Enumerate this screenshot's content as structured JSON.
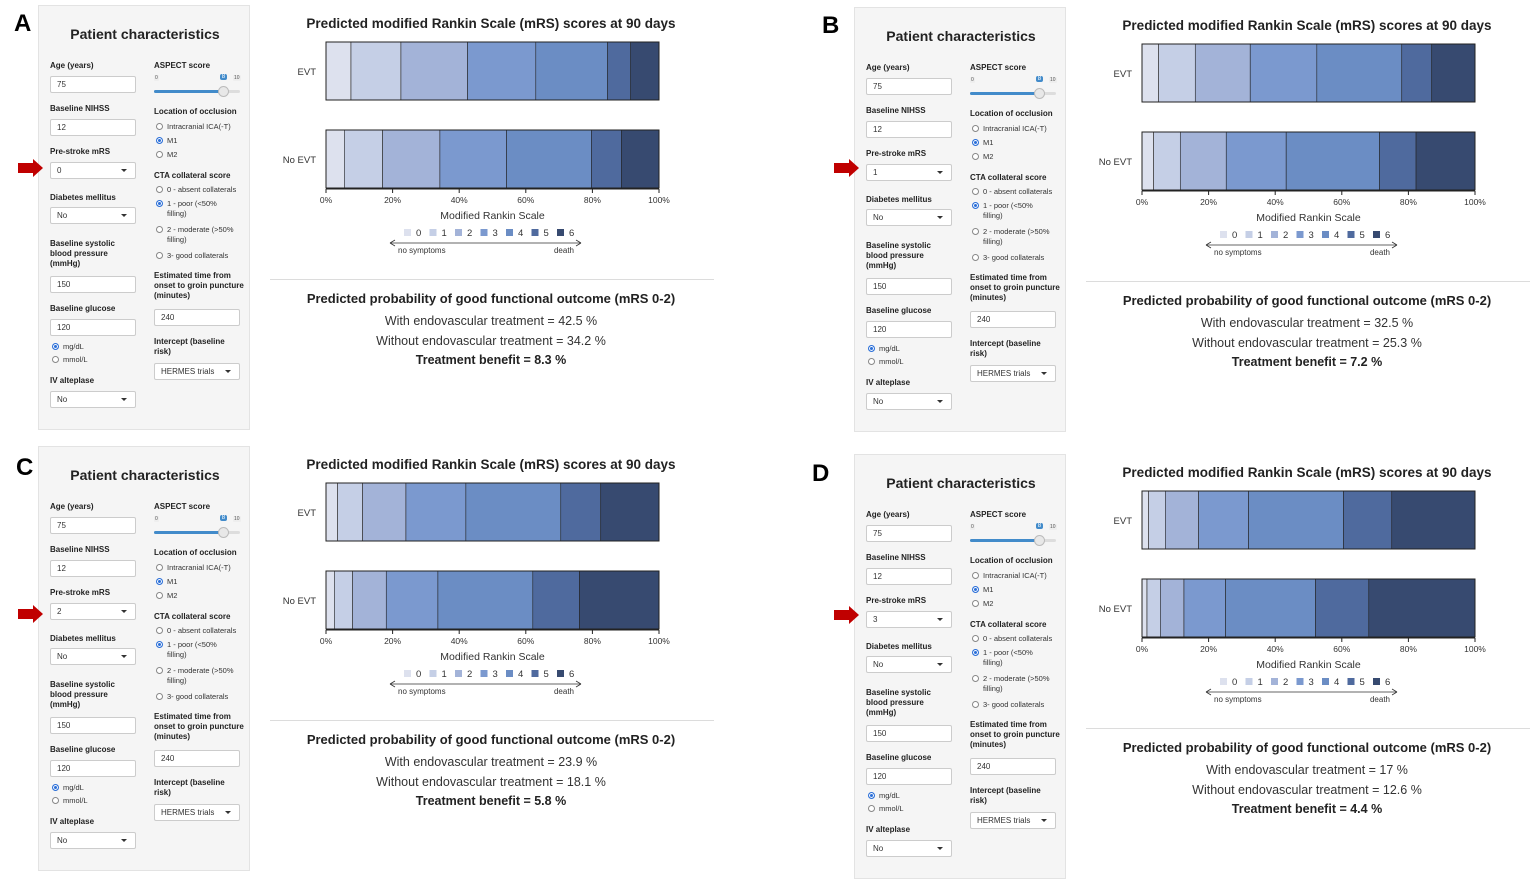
{
  "colors": {
    "mrs": [
      "#dde1ee",
      "#c5cfe6",
      "#a3b3d8",
      "#7b99cf",
      "#6b8dc4",
      "#4f6a9e",
      "#374a70"
    ],
    "arrow": "#c00000",
    "slider": "#428bca"
  },
  "shared": {
    "panel_title": "Patient characteristics",
    "labels": {
      "age": "Age (years)",
      "nihss": "Baseline NIHSS",
      "prestroke": "Pre-stroke mRS",
      "diabetes": "Diabetes mellitus",
      "sbp": "Baseline systolic blood pressure (mmHg)",
      "glucose": "Baseline glucose",
      "alteplase": "IV alteplase",
      "aspect": "ASPECT score",
      "location": "Location of occlusion",
      "cta": "CTA collateral score",
      "time": "Estimated time from onset to groin puncture (minutes)",
      "intercept": "Intercept (baseline risk)"
    },
    "values": {
      "age": "75",
      "nihss": "12",
      "diabetes": "No",
      "sbp": "150",
      "glucose": "120",
      "alteplase": "No",
      "time": "240",
      "intercept": "HERMES trials"
    },
    "aspect_slider": {
      "min": "0",
      "max": "10",
      "value": "8",
      "fraction": 0.8
    },
    "glucose_units": [
      {
        "label": "mg/dL",
        "selected": true
      },
      {
        "label": "mmol/L",
        "selected": false
      }
    ],
    "locations": [
      {
        "label": "Intracranial ICA(-T)",
        "selected": false
      },
      {
        "label": "M1",
        "selected": true
      },
      {
        "label": "M2",
        "selected": false
      }
    ],
    "cta_options": [
      {
        "label": "0 - absent collaterals",
        "selected": false
      },
      {
        "label": "1 - poor (<50%",
        "label2": "filling)",
        "selected": true
      },
      {
        "label": "2 - moderate (>50%",
        "label2": "filling)",
        "selected": false
      },
      {
        "label": "3- good collaterals",
        "selected": false
      }
    ],
    "chart_title": "Predicted modified Rankin Scale (mRS) scores at 90 days",
    "x_label": "Modified Rankin Scale",
    "x_ticks": [
      "0%",
      "20%",
      "40%",
      "60%",
      "80%",
      "100%"
    ],
    "legend": [
      "0",
      "1",
      "2",
      "3",
      "4",
      "5",
      "6"
    ],
    "legend_left": "no symptoms",
    "legend_right": "death",
    "outcome_title": "Predicted probability of good functional outcome (mRS 0-2)"
  },
  "chart_data": [
    {
      "type": "bar",
      "panel": "A",
      "pre_stroke_mrs": "0",
      "categories": [
        "EVT",
        "No EVT"
      ],
      "series": [
        {
          "name": "0",
          "values": [
            7.5,
            5.5
          ]
        },
        {
          "name": "1",
          "values": [
            15.0,
            11.5
          ]
        },
        {
          "name": "2",
          "values": [
            20.0,
            17.2
          ]
        },
        {
          "name": "3",
          "values": [
            20.5,
            20.0
          ]
        },
        {
          "name": "4",
          "values": [
            21.5,
            25.5
          ]
        },
        {
          "name": "5",
          "values": [
            7.0,
            9.0
          ]
        },
        {
          "name": "6",
          "values": [
            8.5,
            11.3
          ]
        }
      ],
      "outcome": {
        "with": "With endovascular treatment = 42.5 %",
        "without": "Without endovascular treatment = 34.2 %",
        "benefit": "Treatment benefit = 8.3 %"
      }
    },
    {
      "type": "bar",
      "panel": "B",
      "pre_stroke_mrs": "1",
      "categories": [
        "EVT",
        "No EVT"
      ],
      "series": [
        {
          "name": "0",
          "values": [
            5.0,
            3.5
          ]
        },
        {
          "name": "1",
          "values": [
            11.0,
            8.0
          ]
        },
        {
          "name": "2",
          "values": [
            16.5,
            13.8
          ]
        },
        {
          "name": "3",
          "values": [
            20.0,
            18.0
          ]
        },
        {
          "name": "4",
          "values": [
            25.5,
            28.0
          ]
        },
        {
          "name": "5",
          "values": [
            9.0,
            11.0
          ]
        },
        {
          "name": "6",
          "values": [
            13.0,
            17.7
          ]
        }
      ],
      "outcome": {
        "with": "With endovascular treatment = 32.5 %",
        "without": "Without endovascular treatment = 25.3 %",
        "benefit": "Treatment benefit = 7.2 %"
      }
    },
    {
      "type": "bar",
      "panel": "C",
      "pre_stroke_mrs": "2",
      "categories": [
        "EVT",
        "No EVT"
      ],
      "series": [
        {
          "name": "0",
          "values": [
            3.5,
            2.5
          ]
        },
        {
          "name": "1",
          "values": [
            7.5,
            5.5
          ]
        },
        {
          "name": "2",
          "values": [
            13.0,
            10.1
          ]
        },
        {
          "name": "3",
          "values": [
            18.0,
            15.5
          ]
        },
        {
          "name": "4",
          "values": [
            28.5,
            28.5
          ]
        },
        {
          "name": "5",
          "values": [
            12.0,
            14.0
          ]
        },
        {
          "name": "6",
          "values": [
            17.5,
            23.9
          ]
        }
      ],
      "outcome": {
        "with": "With endovascular treatment = 23.9 %",
        "without": "Without endovascular treatment = 18.1 %",
        "benefit": "Treatment benefit = 5.8 %"
      }
    },
    {
      "type": "bar",
      "panel": "D",
      "pre_stroke_mrs": "3",
      "categories": [
        "EVT",
        "No EVT"
      ],
      "series": [
        {
          "name": "0",
          "values": [
            2.0,
            1.5
          ]
        },
        {
          "name": "1",
          "values": [
            5.0,
            4.0
          ]
        },
        {
          "name": "2",
          "values": [
            10.0,
            7.1
          ]
        },
        {
          "name": "3",
          "values": [
            15.0,
            12.5
          ]
        },
        {
          "name": "4",
          "values": [
            28.5,
            27.0
          ]
        },
        {
          "name": "5",
          "values": [
            14.5,
            16.0
          ]
        },
        {
          "name": "6",
          "values": [
            25.0,
            31.9
          ]
        }
      ],
      "outcome": {
        "with": "With endovascular treatment = 17 %",
        "without": "Without endovascular treatment = 12.6 %",
        "benefit": "Treatment benefit = 4.4 %"
      }
    }
  ]
}
